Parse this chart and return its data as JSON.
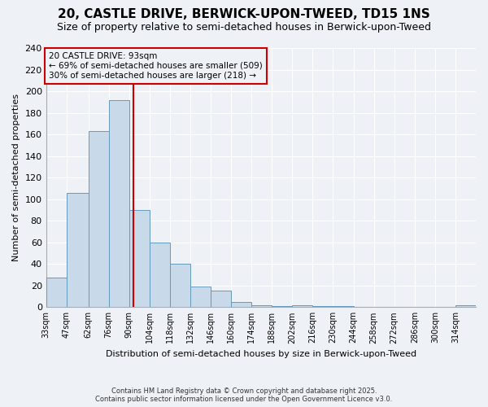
{
  "title1": "20, CASTLE DRIVE, BERWICK-UPON-TWEED, TD15 1NS",
  "title2": "Size of property relative to semi-detached houses in Berwick-upon-Tweed",
  "xlabel": "Distribution of semi-detached houses by size in Berwick-upon-Tweed",
  "ylabel": "Number of semi-detached properties",
  "bin_labels": [
    "33sqm",
    "47sqm",
    "62sqm",
    "76sqm",
    "90sqm",
    "104sqm",
    "118sqm",
    "132sqm",
    "146sqm",
    "160sqm",
    "174sqm",
    "188sqm",
    "202sqm",
    "216sqm",
    "230sqm",
    "244sqm",
    "258sqm",
    "272sqm",
    "286sqm",
    "300sqm",
    "314sqm"
  ],
  "bin_edges": [
    33,
    47,
    62,
    76,
    90,
    104,
    118,
    132,
    146,
    160,
    174,
    188,
    202,
    216,
    230,
    244,
    258,
    272,
    286,
    300,
    314,
    328
  ],
  "values": [
    27,
    106,
    163,
    192,
    90,
    60,
    40,
    19,
    15,
    5,
    2,
    1,
    2,
    1,
    1,
    0,
    0,
    0,
    0,
    0,
    2
  ],
  "bar_color": "#c8daea",
  "bar_edge_color": "#6699bb",
  "property_size": 93,
  "annotation_title": "20 CASTLE DRIVE: 93sqm",
  "annotation_line1": "← 69% of semi-detached houses are smaller (509)",
  "annotation_line2": "30% of semi-detached houses are larger (218) →",
  "vline_color": "#cc0000",
  "ylim": [
    0,
    240
  ],
  "yticks": [
    0,
    20,
    40,
    60,
    80,
    100,
    120,
    140,
    160,
    180,
    200,
    220,
    240
  ],
  "footer_line1": "Contains HM Land Registry data © Crown copyright and database right 2025.",
  "footer_line2": "Contains public sector information licensed under the Open Government Licence v3.0.",
  "bg_color": "#eef2f7",
  "grid_color": "#ffffff",
  "title1_fontsize": 11,
  "title2_fontsize": 9,
  "xlabel_fontsize": 8,
  "ylabel_fontsize": 8
}
